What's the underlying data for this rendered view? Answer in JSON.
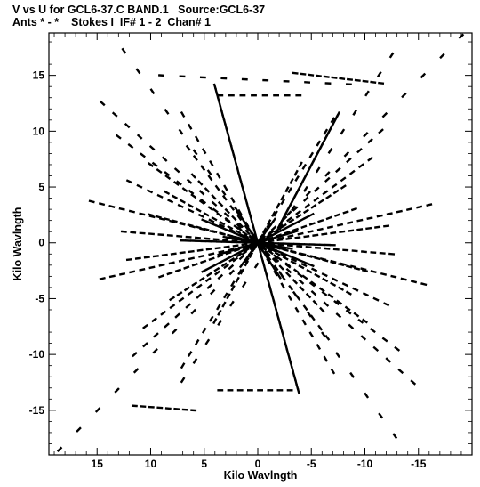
{
  "chart_data": {
    "type": "scatter",
    "title": "V vs U for GCL6-37.C BAND.1   Source:GCL6-37",
    "subtitle": "Ants * - *    Stokes I  IF# 1 - 2  Chan# 1",
    "xlabel": "Kilo Wavlngth",
    "ylabel": "Kilo Wavlngth",
    "xlim": [
      19.5,
      -20.0
    ],
    "ylim": [
      -19.0,
      18.8
    ],
    "x_reversed": true,
    "xticks": [
      15,
      10,
      5,
      0,
      -5,
      -10,
      -15
    ],
    "yticks": [
      15,
      10,
      5,
      0,
      -5,
      -10,
      -15
    ],
    "grid": false,
    "legend": "none",
    "description_of_points": "uv-coverage tracks (V vs U) in kilo-wavelengths; each baseline track also drawn with its conjugate (-u,-v)",
    "tracks": [
      {
        "from": [
          18.5,
          -18.5
        ],
        "to": [
          -19.0,
          18.5
        ],
        "n": 22
      },
      {
        "from": [
          12.5,
          17.2
        ],
        "to": [
          -12.8,
          -17.3
        ],
        "n": 20
      },
      {
        "from": [
          -12.5,
          16.8
        ],
        "to": [
          7.0,
          -12.3
        ],
        "n": 18
      },
      {
        "from": [
          4.0,
          14.0
        ],
        "to": [
          -3.8,
          -13.3
        ],
        "n": 70
      },
      {
        "from": [
          -2.0,
          1.5
        ],
        "to": [
          -7.5,
          11.5
        ],
        "n": 40
      },
      {
        "from": [
          3.5,
          13.2
        ],
        "to": [
          -3.8,
          13.2
        ],
        "n": 8
      },
      {
        "from": [
          -3.5,
          15.2
        ],
        "to": [
          -11.5,
          14.3
        ],
        "n": 12
      },
      {
        "from": [
          9.0,
          15.0
        ],
        "to": [
          -8.5,
          14.2
        ],
        "n": 10
      },
      {
        "from": [
          6.0,
          -15.0
        ],
        "to": [
          11.5,
          -14.6
        ],
        "n": 8
      },
      {
        "from": [
          -3.0,
          -13.2
        ],
        "to": [
          3.5,
          -13.2
        ],
        "n": 8
      },
      {
        "from": [
          15.5,
          3.7
        ],
        "to": [
          -15.5,
          -3.7
        ],
        "n": 34
      },
      {
        "from": [
          14.5,
          -3.2
        ],
        "to": [
          -16.0,
          3.4
        ],
        "n": 34
      },
      {
        "from": [
          10.0,
          7.0
        ],
        "to": [
          -10.0,
          -7.0
        ],
        "n": 26
      },
      {
        "from": [
          10.5,
          -7.5
        ],
        "to": [
          -10.5,
          7.5
        ],
        "n": 26
      },
      {
        "from": [
          14.5,
          12.5
        ],
        "to": [
          -14.5,
          -12.5
        ],
        "n": 26
      },
      {
        "from": [
          7.0,
          11.5
        ],
        "to": [
          -7.0,
          -11.5
        ],
        "n": 22
      },
      {
        "from": [
          -7.0,
          11.0
        ],
        "to": [
          7.0,
          -11.0
        ],
        "n": 22
      },
      {
        "from": [
          12.5,
          1.0
        ],
        "to": [
          -12.5,
          -1.0
        ],
        "n": 30
      },
      {
        "from": [
          12.0,
          -1.5
        ],
        "to": [
          -12.0,
          1.5
        ],
        "n": 30
      },
      {
        "from": [
          8.5,
          4.5
        ],
        "to": [
          -8.5,
          -4.5
        ],
        "n": 24
      },
      {
        "from": [
          8.0,
          -5.0
        ],
        "to": [
          -8.0,
          5.0
        ],
        "n": 24
      },
      {
        "from": [
          5.0,
          2.0
        ],
        "to": [
          -5.0,
          -2.0
        ],
        "n": 24
      },
      {
        "from": [
          5.0,
          -2.5
        ],
        "to": [
          -5.0,
          2.5
        ],
        "n": 24
      },
      {
        "from": [
          3.0,
          0.5
        ],
        "to": [
          -3.0,
          -0.5
        ],
        "n": 22
      },
      {
        "from": [
          3.5,
          -1.0
        ],
        "to": [
          -3.5,
          1.0
        ],
        "n": 22
      },
      {
        "from": [
          13.0,
          9.5
        ],
        "to": [
          -13.0,
          -9.5
        ],
        "n": 24
      },
      {
        "from": [
          11.5,
          -10.0
        ],
        "to": [
          -11.5,
          10.0
        ],
        "n": 24
      },
      {
        "from": [
          6.5,
          8.5
        ],
        "to": [
          -6.5,
          -8.5
        ],
        "n": 20
      },
      {
        "from": [
          4.0,
          -7.0
        ],
        "to": [
          -4.0,
          7.0
        ],
        "n": 20
      },
      {
        "from": [
          12.0,
          5.5
        ],
        "to": [
          -12.0,
          -5.5
        ],
        "n": 26
      },
      {
        "from": [
          2.0,
          3.0
        ],
        "to": [
          -2.0,
          -3.0
        ],
        "n": 16
      },
      {
        "from": [
          1.5,
          -2.0
        ],
        "to": [
          -1.5,
          2.0
        ],
        "n": 16
      },
      {
        "from": [
          10.0,
          2.5
        ],
        "to": [
          -10.0,
          -2.5
        ],
        "n": 28
      },
      {
        "from": [
          7.0,
          0.2
        ],
        "to": [
          -7.0,
          -0.2
        ],
        "n": 30
      },
      {
        "from": [
          6.0,
          6.0
        ],
        "to": [
          -6.0,
          -6.0
        ],
        "n": 20
      },
      {
        "from": [
          9.0,
          -3.0
        ],
        "to": [
          -9.0,
          3.0
        ],
        "n": 24
      }
    ]
  }
}
